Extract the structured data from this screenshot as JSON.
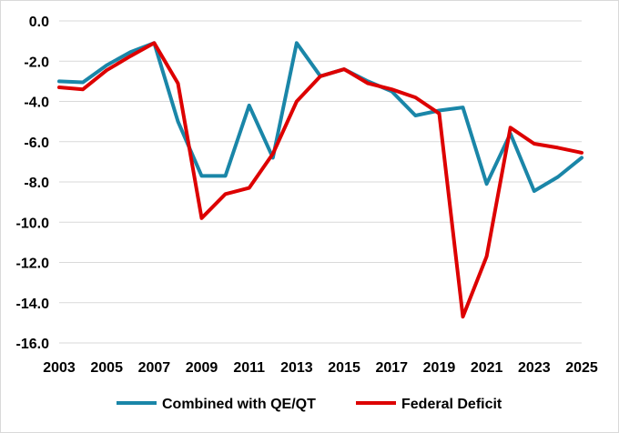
{
  "chart_data": {
    "type": "line",
    "title": "",
    "xlabel": "",
    "ylabel": "",
    "x": [
      2003,
      2004,
      2005,
      2006,
      2007,
      2008,
      2009,
      2010,
      2011,
      2012,
      2013,
      2014,
      2015,
      2016,
      2017,
      2018,
      2019,
      2020,
      2021,
      2022,
      2023,
      2024,
      2025
    ],
    "xticks": [
      "2003",
      "2005",
      "2007",
      "2009",
      "2011",
      "2013",
      "2015",
      "2017",
      "2019",
      "2021",
      "2023",
      "2025"
    ],
    "xlim": [
      2003,
      2025
    ],
    "ylim": [
      -16,
      0
    ],
    "yticks": [
      "0.0",
      "-2.0",
      "-4.0",
      "-6.0",
      "-8.0",
      "-10.0",
      "-12.0",
      "-14.0",
      "-16.0"
    ],
    "grid": true,
    "legend_position": "bottom",
    "series": [
      {
        "name": "Combined with QE/QT",
        "color": "#1a86a8",
        "values": [
          -3.0,
          -3.05,
          -2.2,
          -1.55,
          -1.1,
          -5.0,
          -7.7,
          -7.7,
          -4.2,
          -6.8,
          -1.1,
          -2.75,
          -2.4,
          -3.0,
          -3.5,
          -4.7,
          -4.45,
          -4.3,
          -8.1,
          -5.6,
          -8.45,
          -7.75,
          -6.8
        ]
      },
      {
        "name": "Federal Deficit",
        "color": "#dd0000",
        "values": [
          -3.3,
          -3.4,
          -2.45,
          -1.75,
          -1.1,
          -3.1,
          -9.8,
          -8.6,
          -8.3,
          -6.6,
          -4.0,
          -2.75,
          -2.4,
          -3.1,
          -3.4,
          -3.8,
          -4.6,
          -14.7,
          -11.7,
          -5.3,
          -6.1,
          -6.3,
          -6.55
        ]
      }
    ]
  }
}
